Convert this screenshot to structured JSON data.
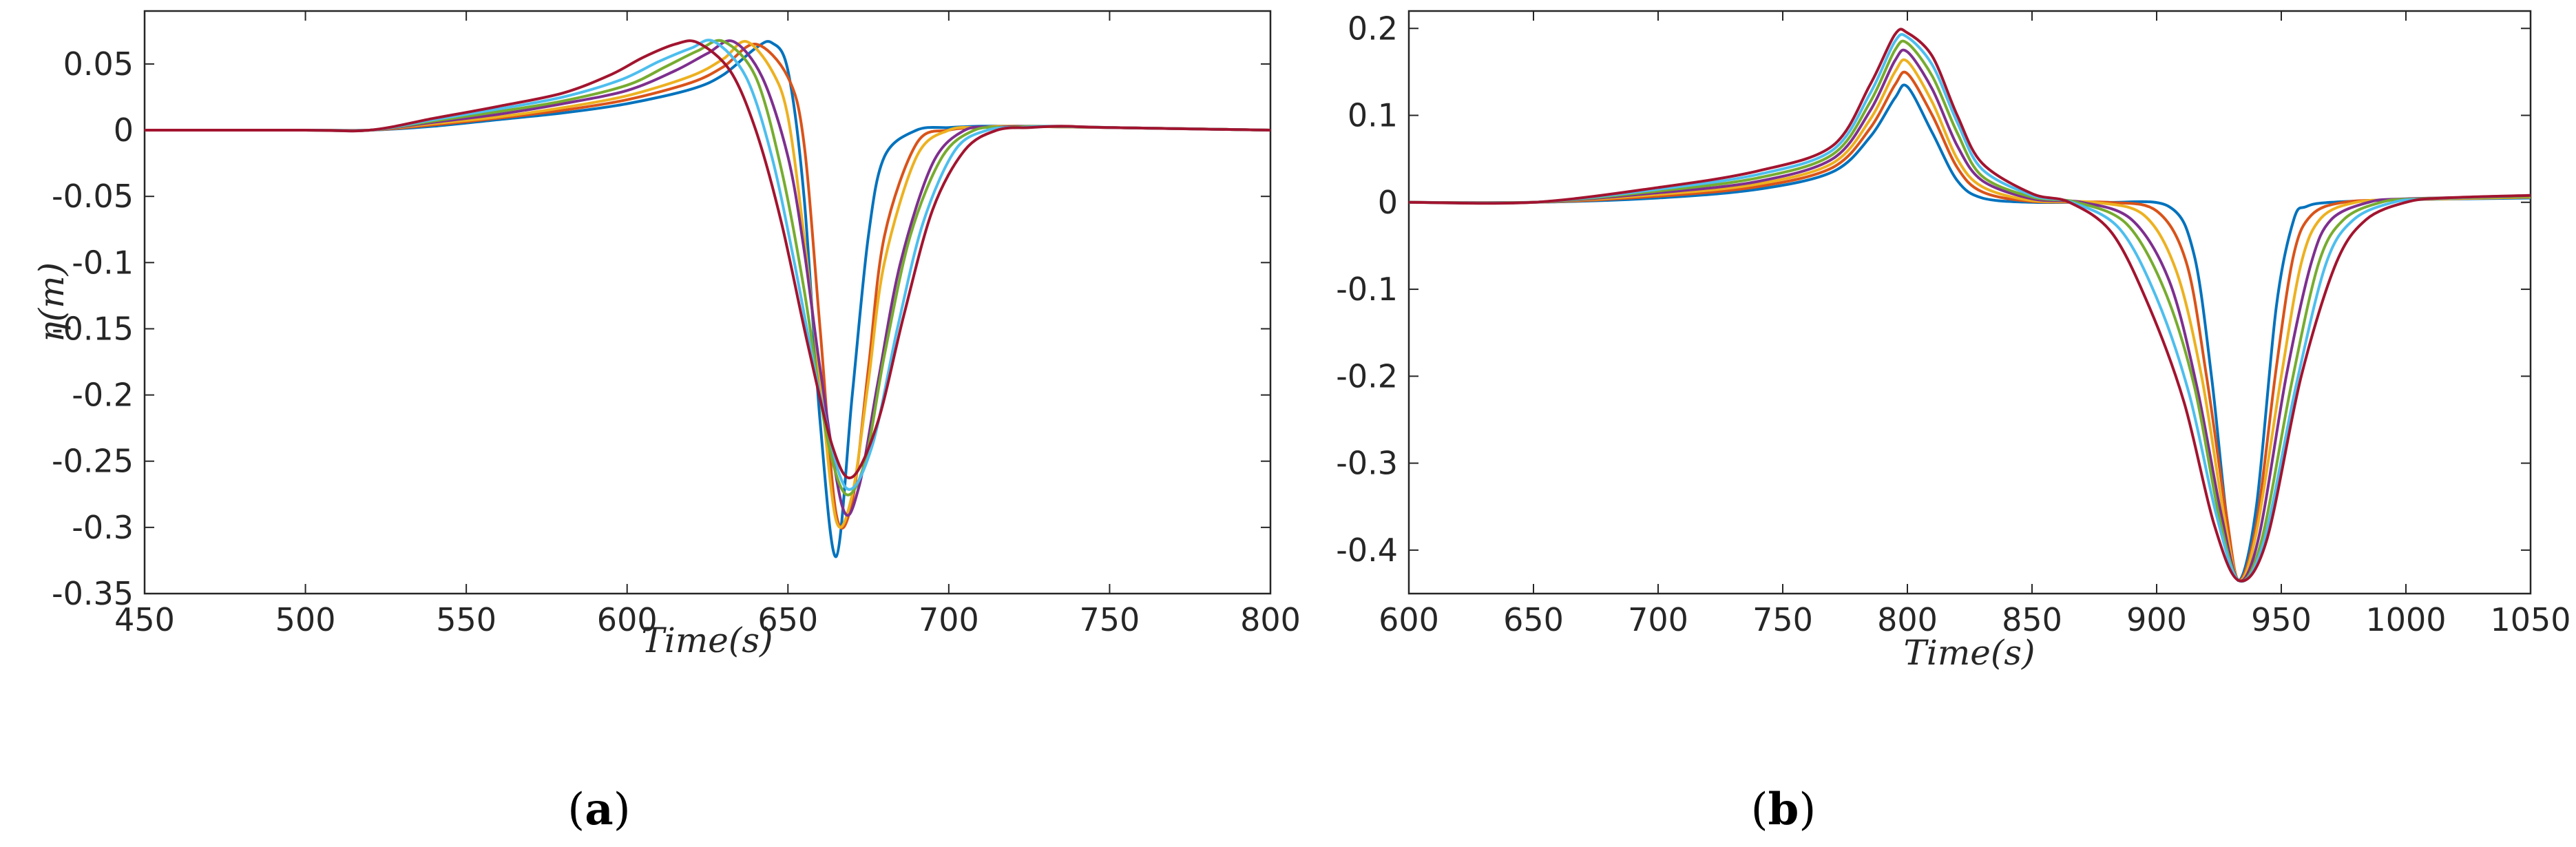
{
  "chart_data": [
    {
      "type": "line",
      "panel": "(a)",
      "panel_open": "(",
      "panel_letter": "a",
      "panel_close": ")",
      "xlabel": "Time(s)",
      "ylabel": "η(m)",
      "xlim": [
        450,
        800
      ],
      "ylim": [
        -0.35,
        0.09
      ],
      "xticks": [
        450,
        500,
        550,
        600,
        650,
        700,
        750,
        800
      ],
      "yticks": [
        -0.35,
        -0.3,
        -0.25,
        -0.2,
        -0.15,
        -0.1,
        -0.05,
        0,
        0.05
      ],
      "ytick_labels": [
        "-0.35",
        "-0.3",
        "-0.25",
        "-0.2",
        "-0.15",
        "-0.1",
        "-0.05",
        "0",
        "0.05"
      ],
      "grid": false,
      "series": [
        {
          "color": "#0072BD",
          "x": [
            450,
            500,
            520,
            540,
            560,
            580,
            600,
            620,
            630,
            640,
            645,
            650,
            655,
            660,
            665,
            670,
            675,
            680,
            690,
            700,
            710,
            720,
            750,
            800
          ],
          "y": [
            0,
            0,
            0,
            0.003,
            0.008,
            0.013,
            0.02,
            0.031,
            0.042,
            0.062,
            0.066,
            0.045,
            -0.05,
            -0.22,
            -0.322,
            -0.2,
            -0.08,
            -0.02,
            0.0,
            0.002,
            0.003,
            0.003,
            0.002,
            0
          ]
        },
        {
          "color": "#D95319",
          "x": [
            450,
            500,
            520,
            540,
            560,
            580,
            600,
            620,
            630,
            640,
            650,
            655,
            660,
            665,
            670,
            675,
            680,
            690,
            700,
            710,
            720,
            750,
            800
          ],
          "y": [
            0,
            0,
            0,
            0.004,
            0.009,
            0.015,
            0.023,
            0.036,
            0.048,
            0.065,
            0.04,
            -0.01,
            -0.15,
            -0.29,
            -0.28,
            -0.18,
            -0.08,
            -0.01,
            0.0,
            0.002,
            0.003,
            0.002,
            0
          ]
        },
        {
          "color": "#EDB120",
          "x": [
            450,
            500,
            520,
            540,
            560,
            580,
            600,
            620,
            630,
            637,
            645,
            650,
            655,
            660,
            665,
            670,
            675,
            680,
            690,
            700,
            710,
            720,
            750,
            800
          ],
          "y": [
            0,
            0,
            0,
            0.005,
            0.01,
            0.017,
            0.026,
            0.041,
            0.054,
            0.067,
            0.045,
            0.01,
            -0.08,
            -0.19,
            -0.295,
            -0.275,
            -0.19,
            -0.1,
            -0.02,
            0.0,
            0.002,
            0.003,
            0.002,
            0
          ]
        },
        {
          "color": "#7E2F8E",
          "x": [
            450,
            500,
            520,
            540,
            560,
            580,
            600,
            615,
            625,
            633,
            642,
            650,
            655,
            660,
            667,
            672,
            678,
            685,
            695,
            705,
            715,
            725,
            750,
            800
          ],
          "y": [
            0,
            0,
            0,
            0.006,
            0.012,
            0.02,
            0.03,
            0.045,
            0.058,
            0.067,
            0.04,
            -0.02,
            -0.09,
            -0.18,
            -0.285,
            -0.27,
            -0.19,
            -0.1,
            -0.025,
            0.0,
            0.002,
            0.003,
            0.002,
            0
          ]
        },
        {
          "color": "#77AC30",
          "x": [
            450,
            500,
            520,
            540,
            560,
            580,
            600,
            612,
            622,
            630,
            640,
            648,
            655,
            662,
            668,
            674,
            680,
            688,
            698,
            708,
            718,
            728,
            750,
            800
          ],
          "y": [
            0,
            0,
            0,
            0.007,
            0.014,
            0.022,
            0.034,
            0.048,
            0.06,
            0.067,
            0.04,
            -0.03,
            -0.12,
            -0.23,
            -0.275,
            -0.25,
            -0.17,
            -0.08,
            -0.02,
            0.0,
            0.002,
            0.003,
            0.002,
            0
          ]
        },
        {
          "color": "#4DBEEE",
          "x": [
            450,
            500,
            520,
            540,
            560,
            580,
            598,
            610,
            620,
            627,
            637,
            645,
            652,
            660,
            668,
            676,
            684,
            692,
            702,
            712,
            722,
            732,
            750,
            800
          ],
          "y": [
            0,
            0,
            0,
            0.008,
            0.016,
            0.025,
            0.038,
            0.052,
            0.062,
            0.067,
            0.04,
            -0.02,
            -0.1,
            -0.2,
            -0.27,
            -0.24,
            -0.15,
            -0.07,
            -0.015,
            0.0,
            0.002,
            0.003,
            0.002,
            0
          ]
        },
        {
          "color": "#A2142F",
          "x": [
            450,
            500,
            520,
            540,
            560,
            580,
            595,
            605,
            615,
            622,
            632,
            640,
            648,
            656,
            664,
            670,
            678,
            686,
            695,
            705,
            715,
            725,
            735,
            750,
            800
          ],
          "y": [
            0,
            0,
            0,
            0.009,
            0.018,
            0.028,
            0.042,
            0.055,
            0.065,
            0.066,
            0.045,
            0.0,
            -0.07,
            -0.16,
            -0.24,
            -0.262,
            -0.22,
            -0.14,
            -0.06,
            -0.015,
            0.0,
            0.002,
            0.003,
            0.002,
            0
          ]
        }
      ]
    },
    {
      "type": "line",
      "panel": "(b)",
      "panel_open": "(",
      "panel_letter": "b",
      "panel_close": ")",
      "xlabel": "Time(s)",
      "ylabel": "",
      "xlim": [
        600,
        1050
      ],
      "ylim": [
        -0.45,
        0.22
      ],
      "xticks": [
        600,
        650,
        700,
        750,
        800,
        850,
        900,
        950,
        1000,
        1050
      ],
      "yticks": [
        -0.4,
        -0.3,
        -0.2,
        -0.1,
        0,
        0.1,
        0.2
      ],
      "ytick_labels": [
        "-0.4",
        "-0.3",
        "-0.2",
        "-0.1",
        "0",
        "0.1",
        "0.2"
      ],
      "grid": false,
      "series": [
        {
          "color": "#0072BD",
          "x": [
            600,
            650,
            700,
            740,
            770,
            785,
            795,
            800,
            810,
            820,
            830,
            850,
            880,
            905,
            915,
            922,
            928,
            933,
            940,
            948,
            955,
            960,
            970,
            1000,
            1050
          ],
          "y": [
            0,
            0,
            0.005,
            0.015,
            0.035,
            0.075,
            0.12,
            0.133,
            0.08,
            0.025,
            0.005,
            0.0,
            0.0,
            -0.005,
            -0.06,
            -0.2,
            -0.36,
            -0.435,
            -0.35,
            -0.12,
            -0.02,
            -0.005,
            0.0,
            0.003,
            0.005
          ]
        },
        {
          "color": "#D95319",
          "x": [
            600,
            650,
            700,
            740,
            770,
            785,
            795,
            800,
            810,
            820,
            830,
            850,
            880,
            900,
            912,
            920,
            928,
            933,
            940,
            948,
            955,
            962,
            975,
            1000,
            1050
          ],
          "y": [
            0,
            0,
            0.007,
            0.018,
            0.04,
            0.085,
            0.135,
            0.148,
            0.1,
            0.04,
            0.012,
            0.001,
            0.0,
            -0.01,
            -0.07,
            -0.2,
            -0.36,
            -0.435,
            -0.37,
            -0.19,
            -0.06,
            -0.015,
            0.0,
            0.003,
            0.006
          ]
        },
        {
          "color": "#EDB120",
          "x": [
            600,
            650,
            700,
            740,
            770,
            785,
            795,
            800,
            810,
            820,
            830,
            850,
            875,
            895,
            908,
            918,
            927,
            933,
            940,
            950,
            958,
            966,
            980,
            1000,
            1050
          ],
          "y": [
            0,
            0,
            0.009,
            0.021,
            0.045,
            0.095,
            0.15,
            0.162,
            0.115,
            0.05,
            0.018,
            0.002,
            0.0,
            -0.015,
            -0.08,
            -0.2,
            -0.36,
            -0.435,
            -0.38,
            -0.2,
            -0.07,
            -0.018,
            0.0,
            0.003,
            0.006
          ]
        },
        {
          "color": "#7E2F8E",
          "x": [
            600,
            650,
            700,
            740,
            770,
            785,
            795,
            800,
            810,
            820,
            830,
            850,
            870,
            890,
            905,
            916,
            926,
            933,
            941,
            952,
            962,
            970,
            985,
            1000,
            1050
          ],
          "y": [
            0,
            0,
            0.011,
            0.024,
            0.05,
            0.105,
            0.163,
            0.173,
            0.13,
            0.065,
            0.025,
            0.004,
            0.0,
            -0.02,
            -0.09,
            -0.21,
            -0.36,
            -0.435,
            -0.385,
            -0.2,
            -0.07,
            -0.02,
            0.0,
            0.004,
            0.007
          ]
        },
        {
          "color": "#77AC30",
          "x": [
            600,
            650,
            700,
            740,
            770,
            785,
            795,
            800,
            810,
            820,
            830,
            850,
            868,
            888,
            903,
            915,
            925,
            933,
            942,
            954,
            965,
            975,
            990,
            1005,
            1050
          ],
          "y": [
            0,
            0,
            0.013,
            0.028,
            0.055,
            0.115,
            0.175,
            0.183,
            0.145,
            0.08,
            0.03,
            0.006,
            0.0,
            -0.025,
            -0.1,
            -0.21,
            -0.36,
            -0.435,
            -0.39,
            -0.21,
            -0.07,
            -0.02,
            0.0,
            0.004,
            0.007
          ]
        },
        {
          "color": "#4DBEEE",
          "x": [
            600,
            650,
            700,
            740,
            770,
            785,
            795,
            800,
            810,
            820,
            830,
            850,
            866,
            885,
            900,
            913,
            924,
            933,
            943,
            956,
            968,
            979,
            995,
            1010,
            1050
          ],
          "y": [
            0,
            0,
            0.015,
            0.032,
            0.06,
            0.125,
            0.185,
            0.19,
            0.158,
            0.092,
            0.038,
            0.008,
            0.0,
            -0.03,
            -0.11,
            -0.22,
            -0.36,
            -0.435,
            -0.39,
            -0.21,
            -0.07,
            -0.02,
            0.0,
            0.004,
            0.008
          ]
        },
        {
          "color": "#A2142F",
          "x": [
            600,
            650,
            700,
            740,
            770,
            785,
            795,
            800,
            810,
            820,
            830,
            850,
            865,
            882,
            897,
            911,
            923,
            933,
            944,
            958,
            972,
            984,
            1000,
            1015,
            1050
          ],
          "y": [
            0,
            0,
            0.017,
            0.036,
            0.065,
            0.135,
            0.193,
            0.195,
            0.168,
            0.1,
            0.045,
            0.01,
            0.0,
            -0.035,
            -0.12,
            -0.23,
            -0.37,
            -0.435,
            -0.39,
            -0.2,
            -0.07,
            -0.02,
            0.0,
            0.005,
            0.008
          ]
        }
      ]
    }
  ]
}
